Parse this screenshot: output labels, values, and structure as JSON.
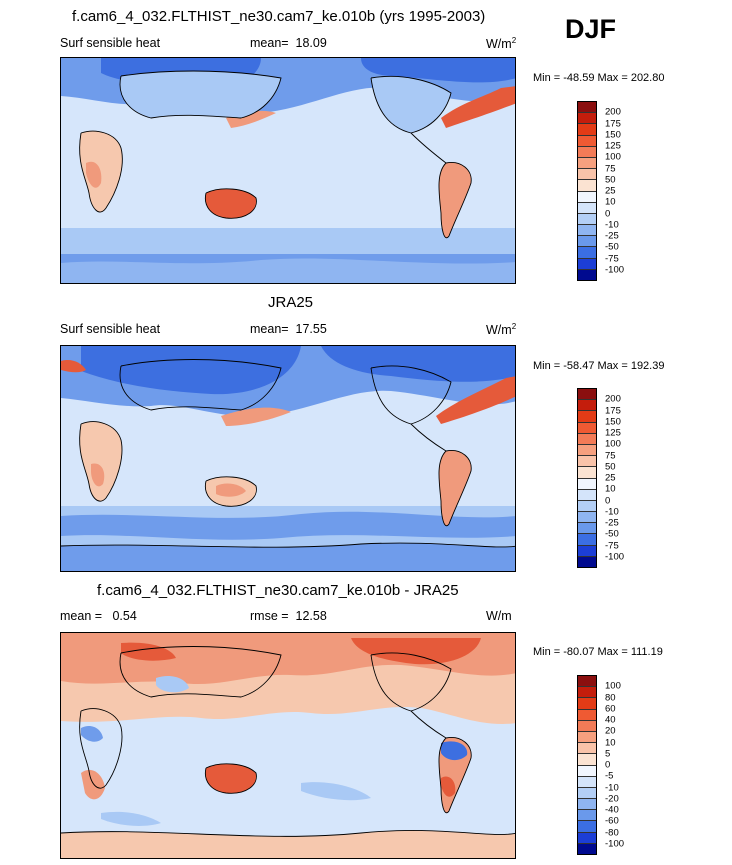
{
  "season": "DJF",
  "colors": {
    "ocean_pale": "#d6e6fb",
    "light_blue": "#a9c9f5",
    "mid_blue": "#6f9ceb",
    "strong_blue": "#3d6fe0",
    "peach": "#f6c8ae",
    "salmon": "#f09a7c",
    "orange_red": "#e55a3a",
    "coast": "#000000"
  },
  "chart_data": [
    {
      "type": "heatmap",
      "title": "f.cam6_4_032.FLTHIST_ne30.cam7_ke.010b (yrs 1995-2003)",
      "left_label": "Surf sensible heat",
      "mean_label": "mean=",
      "mean_value": "18.09",
      "units": "W/m",
      "units_exp": "2",
      "min_label": "Min = -48.59 Max = 202.80",
      "colorbar": {
        "levels": [
          "200",
          "175",
          "150",
          "125",
          "100",
          "75",
          "50",
          "25",
          "10",
          "0",
          "-10",
          "-25",
          "-50",
          "-75",
          "-100"
        ],
        "colors": [
          "#8b0f0f",
          "#c41d0c",
          "#e33b16",
          "#ef5a33",
          "#f37b57",
          "#f6a07f",
          "#f9c3a9",
          "#fbe3d2",
          "#f1f6fe",
          "#d4e4fa",
          "#b3cff6",
          "#8fb5f1",
          "#6a99eb",
          "#3b6ee3",
          "#1c3ed6",
          "#000a8f"
        ]
      }
    },
    {
      "type": "heatmap",
      "title": "JRA25",
      "left_label": "Surf sensible heat",
      "mean_label": "mean=",
      "mean_value": "17.55",
      "units": "W/m",
      "units_exp": "2",
      "min_label": "Min = -58.47 Max = 192.39",
      "colorbar": {
        "levels": [
          "200",
          "175",
          "150",
          "125",
          "100",
          "75",
          "50",
          "25",
          "10",
          "0",
          "-10",
          "-25",
          "-50",
          "-75",
          "-100"
        ],
        "colors": [
          "#8b0f0f",
          "#c41d0c",
          "#e33b16",
          "#ef5a33",
          "#f37b57",
          "#f6a07f",
          "#f9c3a9",
          "#fbe3d2",
          "#f1f6fe",
          "#d4e4fa",
          "#b3cff6",
          "#8fb5f1",
          "#6a99eb",
          "#3b6ee3",
          "#1c3ed6",
          "#000a8f"
        ]
      }
    },
    {
      "type": "heatmap",
      "title": "f.cam6_4_032.FLTHIST_ne30.cam7_ke.010b - JRA25",
      "left_label": "mean =",
      "left_value": "0.54",
      "rmse_label": "rmse =",
      "rmse_value": "12.58",
      "units": "W/m",
      "units_exp": "",
      "min_label": "Min = -80.07 Max = 111.19",
      "colorbar": {
        "levels": [
          "100",
          "80",
          "60",
          "40",
          "20",
          "10",
          "5",
          "0",
          "-5",
          "-10",
          "-20",
          "-40",
          "-60",
          "-80",
          "-100"
        ],
        "colors": [
          "#8b0f0f",
          "#c41d0c",
          "#e33b16",
          "#ef5a33",
          "#f37b57",
          "#f6a07f",
          "#f9c3a9",
          "#fbe3d2",
          "#f1f6fe",
          "#d4e4fa",
          "#b3cff6",
          "#8fb5f1",
          "#6a99eb",
          "#3b6ee3",
          "#1c3ed6",
          "#000a8f"
        ]
      }
    }
  ]
}
